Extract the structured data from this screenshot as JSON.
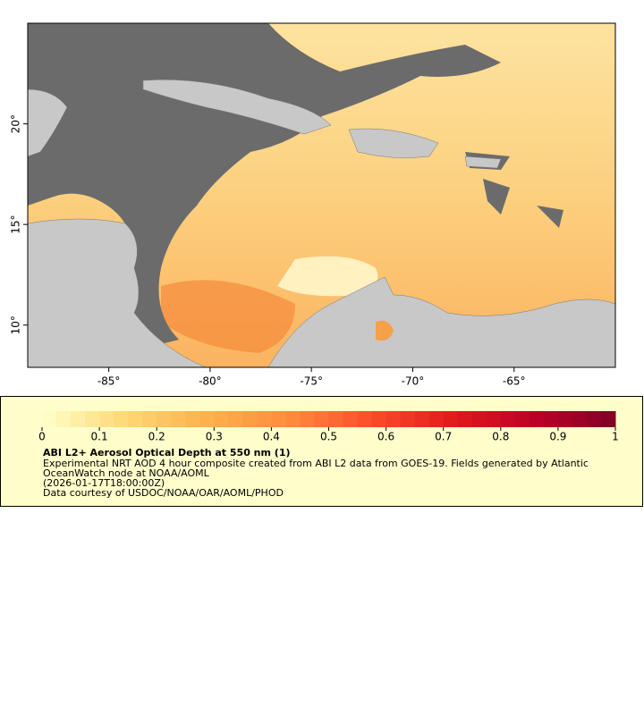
{
  "map": {
    "xlim": [
      -89,
      -60
    ],
    "ylim": [
      7.9,
      25
    ],
    "xticks": [
      {
        "value": -85,
        "label": "-85°"
      },
      {
        "value": -80,
        "label": "-80°"
      },
      {
        "value": -75,
        "label": "-75°"
      },
      {
        "value": -70,
        "label": "-70°"
      },
      {
        "value": -65,
        "label": "-65°"
      }
    ],
    "yticks": [
      {
        "value": 10,
        "label": "10°"
      },
      {
        "value": 15,
        "label": "15°"
      },
      {
        "value": 20,
        "label": "20°"
      }
    ]
  },
  "colorbar": {
    "lim": [
      0,
      1
    ],
    "ticks": [
      0,
      0.1,
      0.2,
      0.3,
      0.4,
      0.5,
      0.6,
      0.7,
      0.8,
      0.9,
      1
    ],
    "colors": [
      "#ffffcc",
      "#fed976",
      "#feb24c",
      "#fd8d3c",
      "#fc4e2a",
      "#e31a1c",
      "#bd0026",
      "#800026"
    ]
  },
  "caption": {
    "title": "ABI L2+ Aerosol Optical Depth at 550 nm (1)",
    "lines": [
      "Experimental NRT AOD 4 hour composite created from ABI L2 data from GOES-19. Fields generated by Atlantic",
      "OceanWatch node at NOAA/AOML",
      "(2026-01-17T18:00:00Z)",
      "Data courtesy of USDOC/NOAA/OAR/AOML/PHOD"
    ]
  }
}
